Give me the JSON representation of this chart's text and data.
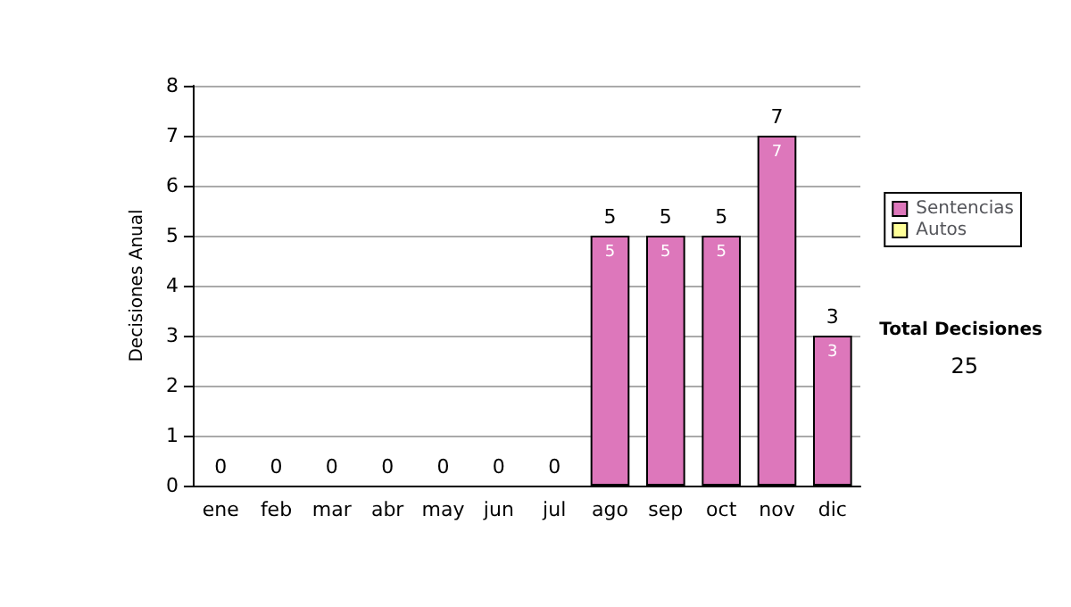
{
  "chart_data": {
    "type": "bar",
    "stacked": true,
    "ylabel": "Decisiones Anual",
    "categories": [
      "ene",
      "feb",
      "mar",
      "abr",
      "may",
      "jun",
      "jul",
      "ago",
      "sep",
      "oct",
      "nov",
      "dic"
    ],
    "series": [
      {
        "name": "Sentencias",
        "color": "#dd77bb",
        "values": [
          0,
          0,
          0,
          0,
          0,
          0,
          0,
          5,
          5,
          5,
          7,
          3
        ],
        "value_labels": [
          null,
          null,
          null,
          null,
          null,
          null,
          null,
          "5",
          "5",
          "5",
          "7",
          "3"
        ]
      },
      {
        "name": "Autos",
        "color": "#ffff99",
        "values": [
          0,
          0,
          0,
          0,
          0,
          0,
          0,
          0,
          0,
          0,
          0,
          0
        ]
      }
    ],
    "totals": [
      "0",
      "0",
      "0",
      "0",
      "0",
      "0",
      "0",
      "5",
      "5",
      "5",
      "7",
      "3"
    ],
    "ylim": [
      0,
      8
    ],
    "yticks": [
      0,
      1,
      2,
      3,
      4,
      5,
      6,
      7,
      8
    ],
    "grid": "y",
    "legend": "right",
    "annotations": [
      "Total Decisiones",
      "25"
    ]
  }
}
